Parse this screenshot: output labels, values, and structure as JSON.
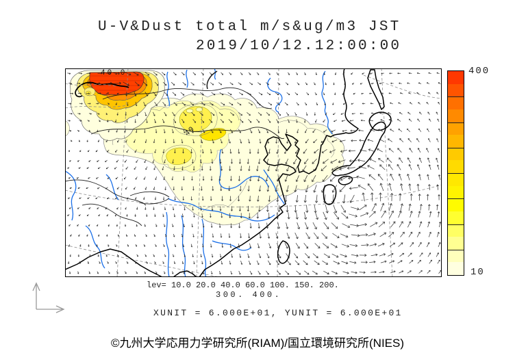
{
  "chart_data": {
    "type": "heatmap",
    "title": "U-V&Dust total m/s&ug/m3 JST",
    "timestamp_jst": "2019/10/12.12:00:00",
    "contour_levels": [
      10.0,
      20.0,
      40.0,
      60.0,
      100.0,
      150.0,
      200.0,
      300.0,
      400.0
    ],
    "legend_line1": "lev= 10.0 20.0 40.0 60.0 100. 150. 200.",
    "legend_line2": "300. 400.",
    "units_note": "XUNIT = 6.000E+01, YUNIT = 6.000E+01",
    "colorbar": {
      "orientation": "vertical",
      "top_label": "400",
      "bottom_label": "10",
      "colors_top_to_bottom": [
        "#ff3800",
        "#ff5400",
        "#ff7000",
        "#ff8a00",
        "#ffa200",
        "#ffb700",
        "#ffca00",
        "#ffdb00",
        "#ffe800",
        "#fff300",
        "#fffb00",
        "#ffff30",
        "#ffff63",
        "#ffff92",
        "#ffffbc",
        "#ffffe0"
      ]
    },
    "map_contour_labels": [
      "40.0",
      "40"
    ],
    "legend_position": "right",
    "grid": "dashed lat/lon lines"
  },
  "map": {
    "label_top_left": "40.0",
    "label_center": "40"
  },
  "footer": {
    "copyright": "©九州大学応用力学研究所(RIAM)/国立環境研究所(NIES)"
  },
  "palette": {
    "dust_pale": "#ffffde",
    "dust_light": "#ffffb4",
    "dust_core": "#fff04d",
    "dust_streak": "#ffe400",
    "hotspot_ring_yellow": "#fff176",
    "hotspot_ring_amber": "#ffc400",
    "hotspot_ring_orange": "#ff9100",
    "hotspot_core": "#ff4000",
    "river": "#1a6fe8",
    "coast": "#000000",
    "arrow": "#222222",
    "grid_line": "#8a8a8a"
  }
}
